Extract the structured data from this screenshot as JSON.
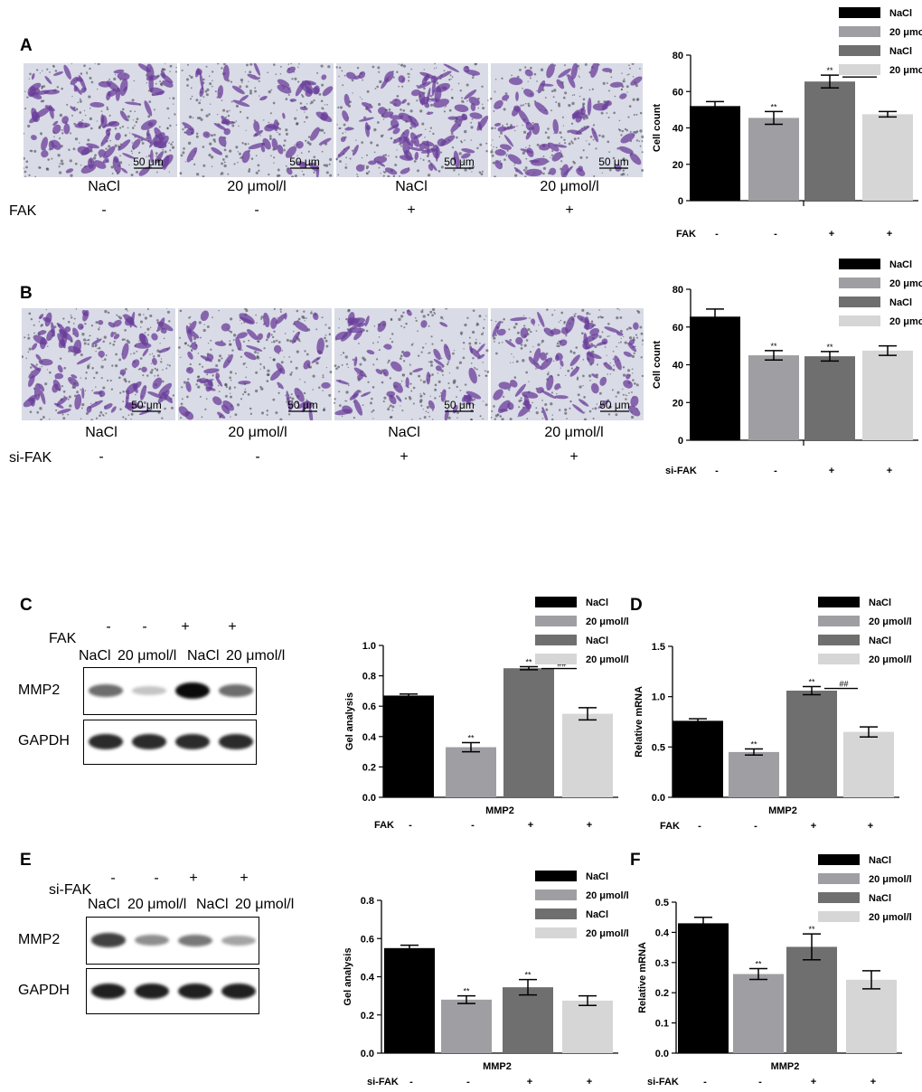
{
  "panels": {
    "A": {
      "letter": "A",
      "images": [
        {
          "scale_bar": "50 μm",
          "label": "NaCl",
          "sign": "-"
        },
        {
          "scale_bar": "50 μm",
          "label": "20 μmol/l",
          "sign": "-"
        },
        {
          "scale_bar": "50 μm",
          "label": "NaCl",
          "sign": "+"
        },
        {
          "scale_bar": "50 μm",
          "label": "20 μmol/l",
          "sign": "+"
        }
      ],
      "row_label": "FAK"
    },
    "B": {
      "letter": "B",
      "images": [
        {
          "scale_bar": "50 μm",
          "label": "NaCl",
          "sign": "-"
        },
        {
          "scale_bar": "50 μm",
          "label": "20 μmol/l",
          "sign": "-"
        },
        {
          "scale_bar": "50 μm",
          "label": "NaCl",
          "sign": "+"
        },
        {
          "scale_bar": "50 μm",
          "label": "20 μmol/l",
          "sign": "+"
        }
      ],
      "row_label": "si-FAK"
    },
    "C": {
      "letter": "C",
      "row_label": "FAK",
      "signs": [
        "-",
        "-",
        "+",
        "+"
      ],
      "lane_labels": [
        "NaCl",
        "20 μmol/l",
        "NaCl",
        "20 μmol/l"
      ],
      "blots": [
        {
          "name": "MMP2",
          "intensity": [
            0.55,
            0.15,
            1.0,
            0.55
          ]
        },
        {
          "name": "GAPDH",
          "intensity": [
            0.85,
            0.85,
            0.85,
            0.85
          ]
        }
      ]
    },
    "E": {
      "letter": "E",
      "row_label": "si-FAK",
      "signs": [
        "-",
        "-",
        "+",
        "+"
      ],
      "lane_labels": [
        "NaCl",
        "20 μmol/l",
        "NaCl",
        "20 μmol/l"
      ],
      "blots": [
        {
          "name": "MMP2",
          "intensity": [
            0.75,
            0.4,
            0.5,
            0.3
          ]
        },
        {
          "name": "GAPDH",
          "intensity": [
            0.9,
            0.9,
            0.9,
            0.9
          ]
        }
      ]
    },
    "D": {
      "letter": "D"
    },
    "F": {
      "letter": "F"
    }
  },
  "legend": {
    "entries": [
      "NaCl",
      "20 μmol/l",
      "NaCl",
      "20 μmol/l"
    ],
    "colors": [
      "#000000",
      "#9e9ea3",
      "#6f6f6f",
      "#d6d6d6"
    ]
  },
  "chart_data": [
    {
      "id": "A",
      "type": "bar",
      "title": "",
      "ylabel": "Cell count",
      "xlabel": "",
      "ylim": [
        0,
        80
      ],
      "yticks": [
        0,
        20,
        40,
        60,
        80
      ],
      "categories": [
        "NaCl",
        "20 μmol/l",
        "NaCl",
        "20 μmol/l"
      ],
      "values": [
        52,
        45.5,
        65.5,
        47.5
      ],
      "errors": [
        2.5,
        3.5,
        3.5,
        1.5
      ],
      "annotations": [
        "",
        "**",
        "**",
        ""
      ],
      "bracket": {
        "from": 2,
        "to": 3,
        "label": "##"
      },
      "group_label": "FAK",
      "group_signs": [
        "-",
        "-",
        "+",
        "+"
      ]
    },
    {
      "id": "B",
      "type": "bar",
      "title": "",
      "ylabel": "Cell count",
      "xlabel": "",
      "ylim": [
        0,
        80
      ],
      "yticks": [
        0,
        20,
        40,
        60,
        80
      ],
      "categories": [
        "NaCl",
        "20 μmol/l",
        "NaCl",
        "20 μmol/l"
      ],
      "values": [
        65.5,
        45,
        44.5,
        47.5
      ],
      "errors": [
        4,
        2.5,
        2.5,
        2.5
      ],
      "annotations": [
        "",
        "**",
        "**",
        ""
      ],
      "group_label": "si-FAK",
      "group_signs": [
        "-",
        "-",
        "+",
        "+"
      ]
    },
    {
      "id": "C",
      "type": "bar",
      "title": "",
      "ylabel": "Gel analysis",
      "xlabel": "MMP2",
      "ylim": [
        0,
        1.0
      ],
      "yticks": [
        "0.0",
        "0.2",
        "0.4",
        "0.6",
        "0.8",
        "1.0"
      ],
      "categories": [
        "NaCl",
        "20 μmol/l",
        "NaCl",
        "20 μmol/l"
      ],
      "values": [
        0.67,
        0.33,
        0.85,
        0.55
      ],
      "errors": [
        0.01,
        0.03,
        0.01,
        0.04
      ],
      "annotations": [
        "",
        "**",
        "**",
        ""
      ],
      "bracket": {
        "from": 2,
        "to": 3,
        "label": "##"
      },
      "group_label": "FAK",
      "group_signs": [
        "-",
        "-",
        "+",
        "+"
      ]
    },
    {
      "id": "D",
      "type": "bar",
      "title": "",
      "ylabel": "Relative mRNA",
      "xlabel": "MMP2",
      "ylim": [
        0,
        1.5
      ],
      "yticks": [
        "0.0",
        "0.5",
        "1.0",
        "1.5"
      ],
      "categories": [
        "NaCl",
        "20 μmol/l",
        "NaCl",
        "20 μmol/l"
      ],
      "values": [
        0.76,
        0.45,
        1.06,
        0.65
      ],
      "errors": [
        0.02,
        0.03,
        0.04,
        0.05
      ],
      "annotations": [
        "",
        "**",
        "**",
        ""
      ],
      "bracket": {
        "from": 2,
        "to": 3,
        "label": "##"
      },
      "group_label": "FAK",
      "group_signs": [
        "-",
        "-",
        "+",
        "+"
      ]
    },
    {
      "id": "E",
      "type": "bar",
      "title": "",
      "ylabel": "Gel analysis",
      "xlabel": "MMP2",
      "ylim": [
        0,
        0.8
      ],
      "yticks": [
        "0.0",
        "0.2",
        "0.4",
        "0.6",
        "0.8"
      ],
      "categories": [
        "NaCl",
        "20 μmol/l",
        "NaCl",
        "20 μmol/l"
      ],
      "values": [
        0.55,
        0.28,
        0.345,
        0.275
      ],
      "errors": [
        0.015,
        0.02,
        0.04,
        0.025
      ],
      "annotations": [
        "",
        "**",
        "**",
        ""
      ],
      "group_label": "si-FAK",
      "group_signs": [
        "-",
        "-",
        "+",
        "+"
      ]
    },
    {
      "id": "F",
      "type": "bar",
      "title": "",
      "ylabel": "Relative mRNA",
      "xlabel": "MMP2",
      "ylim": [
        0,
        0.5
      ],
      "yticks": [
        "0.0",
        "0.1",
        "0.2",
        "0.3",
        "0.4",
        "0.5"
      ],
      "categories": [
        "NaCl",
        "20 μmol/l",
        "NaCl",
        "20 μmol/l"
      ],
      "values": [
        0.43,
        0.262,
        0.352,
        0.243
      ],
      "errors": [
        0.02,
        0.018,
        0.043,
        0.03
      ],
      "annotations": [
        "",
        "**",
        "**",
        ""
      ],
      "group_label": "si-FAK",
      "group_signs": [
        "-",
        "-",
        "+",
        "+"
      ]
    }
  ]
}
